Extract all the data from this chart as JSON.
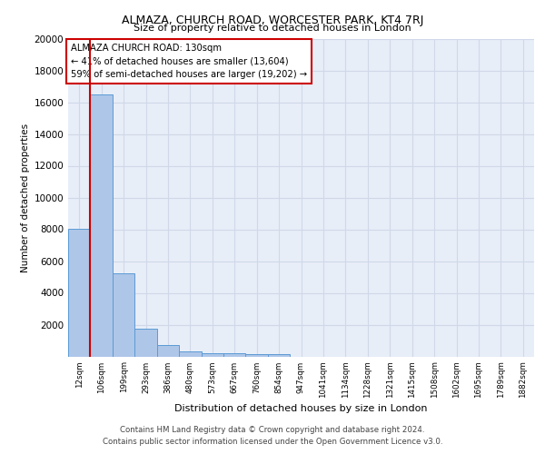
{
  "title": "ALMAZA, CHURCH ROAD, WORCESTER PARK, KT4 7RJ",
  "subtitle": "Size of property relative to detached houses in London",
  "xlabel": "Distribution of detached houses by size in London",
  "ylabel": "Number of detached properties",
  "categories": [
    "12sqm",
    "106sqm",
    "199sqm",
    "293sqm",
    "386sqm",
    "480sqm",
    "573sqm",
    "667sqm",
    "760sqm",
    "854sqm",
    "947sqm",
    "1041sqm",
    "1134sqm",
    "1228sqm",
    "1321sqm",
    "1415sqm",
    "1508sqm",
    "1602sqm",
    "1695sqm",
    "1789sqm",
    "1882sqm"
  ],
  "bar_values": [
    8050,
    16500,
    5250,
    1750,
    730,
    320,
    220,
    175,
    155,
    125,
    0,
    0,
    0,
    0,
    0,
    0,
    0,
    0,
    0,
    0,
    0
  ],
  "bar_color": "#aec6e8",
  "bar_edge_color": "#5b9bd5",
  "vline_x": 0.5,
  "vline_color": "#cc0000",
  "annotation_text": "ALMAZA CHURCH ROAD: 130sqm\n← 41% of detached houses are smaller (13,604)\n59% of semi-detached houses are larger (19,202) →",
  "annotation_box_color": "#ffffff",
  "annotation_box_edge": "#cc0000",
  "ylim": [
    0,
    20000
  ],
  "yticks": [
    0,
    2000,
    4000,
    6000,
    8000,
    10000,
    12000,
    14000,
    16000,
    18000,
    20000
  ],
  "grid_color": "#d0d8e8",
  "bg_color": "#e8eef8",
  "footer": "Contains HM Land Registry data © Crown copyright and database right 2024.\nContains public sector information licensed under the Open Government Licence v3.0."
}
